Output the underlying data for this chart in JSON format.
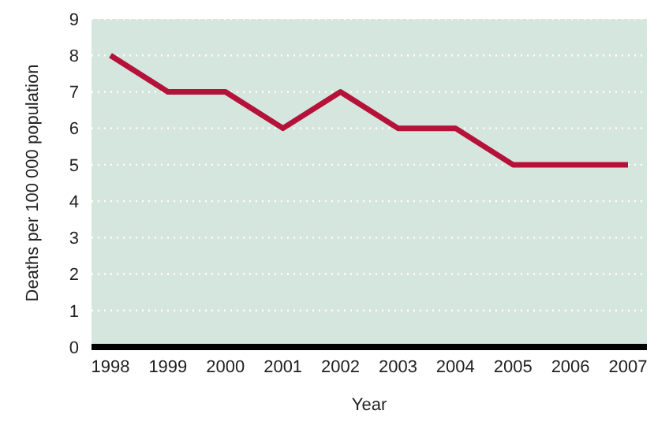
{
  "chart_data": {
    "type": "line",
    "xlabel": "Year",
    "ylabel": "Deaths per 100 000 population",
    "categories": [
      "1998",
      "1999",
      "2000",
      "2001",
      "2002",
      "2003",
      "2004",
      "2005",
      "2006",
      "2007"
    ],
    "series": [
      {
        "color": "#b5123a",
        "values": [
          8,
          7,
          7,
          6,
          7,
          6,
          6,
          5,
          5,
          5
        ]
      }
    ],
    "ylim": [
      0,
      9
    ],
    "yticks": [
      0,
      1,
      2,
      3,
      4,
      5,
      6,
      7,
      8,
      9
    ],
    "grid": "y"
  }
}
